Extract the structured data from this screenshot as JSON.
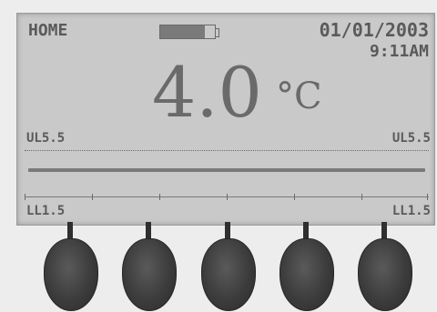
{
  "screen": {
    "mode_label": "HOME",
    "battery_level": 0.82,
    "date": "01/01/2003",
    "time": "9:11AM",
    "temperature_value": "4.0",
    "temperature_unit": "°C",
    "upper_limit_left": "UL5.5",
    "upper_limit_right": "UL5.5",
    "lower_limit_left": "LL1.5",
    "lower_limit_right": "LL1.5"
  },
  "softkeys": [
    {
      "id": "softkey-1"
    },
    {
      "id": "softkey-2"
    },
    {
      "id": "softkey-3"
    },
    {
      "id": "softkey-4"
    },
    {
      "id": "softkey-5"
    }
  ],
  "colors": {
    "lcd_background": "#c9c9c9",
    "lcd_text": "#5a5a5a",
    "button": "#3c3c3c"
  }
}
